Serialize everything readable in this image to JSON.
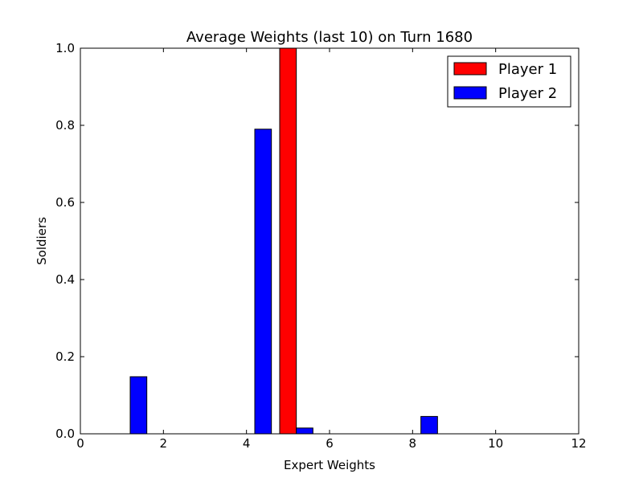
{
  "chart_data": {
    "type": "bar",
    "title": "Average Weights (last 10) on Turn 1680",
    "xlabel": "Expert Weights",
    "ylabel": "Soldiers",
    "xlim": [
      0,
      12
    ],
    "ylim": [
      0,
      1.0
    ],
    "xticks": [
      "0",
      "2",
      "4",
      "6",
      "8",
      "10",
      "12"
    ],
    "yticks": [
      "0.0",
      "0.2",
      "0.4",
      "0.6",
      "0.8",
      "1.0"
    ],
    "bar_width": 0.4,
    "legend_position": "top-right",
    "grid": false,
    "series": [
      {
        "name": "Player 1",
        "color": "#ff0000",
        "x": [
          0.8,
          1.8,
          2.8,
          3.8,
          4.8,
          5.8,
          6.8,
          7.8,
          8.8,
          9.8
        ],
        "values": [
          0,
          0,
          0,
          0,
          1.0,
          0,
          0,
          0,
          0,
          0
        ]
      },
      {
        "name": "Player 2",
        "color": "#0000ff",
        "x": [
          1.2,
          2.2,
          3.2,
          4.2,
          5.2,
          6.2,
          7.2,
          8.2,
          9.2,
          10.2
        ],
        "values": [
          0.148,
          0,
          0,
          0.79,
          0.015,
          0,
          0,
          0.045,
          0,
          0
        ]
      }
    ]
  }
}
